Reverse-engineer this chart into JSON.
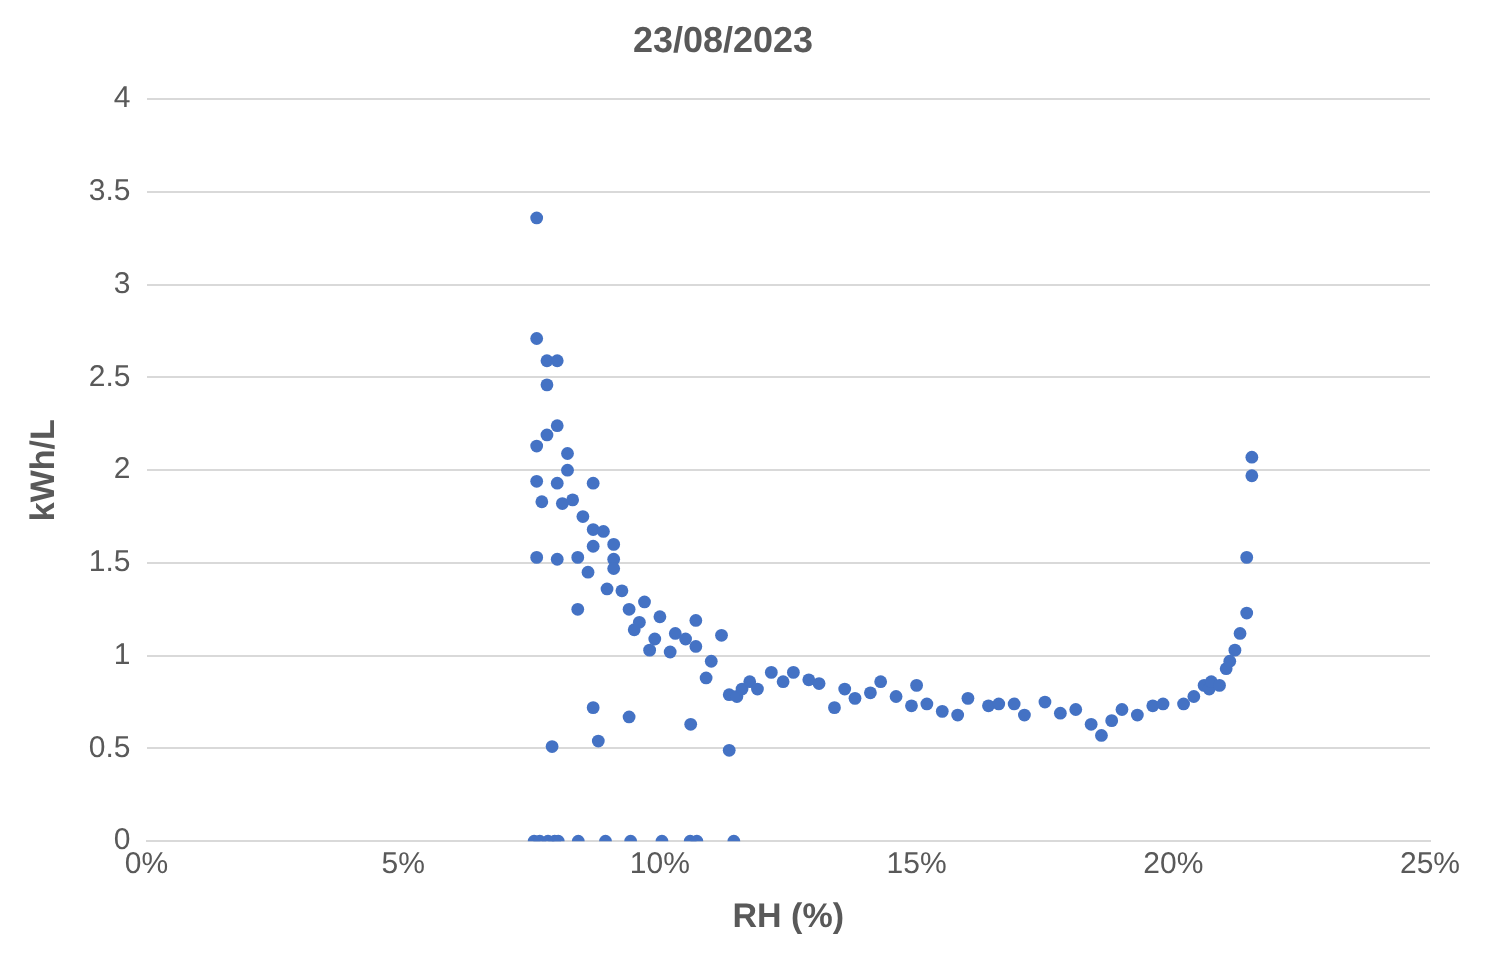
{
  "chart_data": {
    "type": "scatter",
    "title": "23/08/2023",
    "xlabel": "RH (%)",
    "ylabel": "kWh/L",
    "xlim": [
      0,
      25
    ],
    "xticks": [
      {
        "value": 0,
        "label": "0%"
      },
      {
        "value": 5,
        "label": "5%"
      },
      {
        "value": 10,
        "label": "10%"
      },
      {
        "value": 15,
        "label": "15%"
      },
      {
        "value": 20,
        "label": "20%"
      },
      {
        "value": 25,
        "label": "25%"
      }
    ],
    "ylim": [
      0,
      4
    ],
    "yticks": [
      0,
      0.5,
      1,
      1.5,
      2,
      2.5,
      3,
      3.5,
      4
    ],
    "grid": "y",
    "legend": false,
    "marker": "circle",
    "series": [
      {
        "color": "#4472c4",
        "x": [
          7.6,
          7.6,
          7.8,
          8.0,
          7.8,
          8.0,
          7.6,
          7.8,
          8.2,
          8.2,
          7.6,
          8.0,
          8.7,
          7.7,
          8.1,
          8.3,
          8.5,
          8.7,
          8.9,
          7.6,
          8.0,
          8.4,
          8.7,
          8.6,
          9.1,
          9.1,
          8.97,
          8.4,
          9.1,
          9.26,
          9.4,
          9.6,
          9.7,
          10.0,
          9.9,
          10.3,
          10.2,
          10.7,
          10.7,
          11.0,
          11.2,
          9.5,
          9.8,
          10.5,
          10.9,
          8.7,
          9.4,
          7.9,
          8.8,
          10.6,
          11.35,
          7.55,
          7.66,
          7.82,
          7.95,
          8.02,
          8.41,
          8.94,
          9.43,
          10.04,
          10.59,
          10.72,
          11.44,
          11.35,
          11.5,
          11.6,
          11.75,
          11.9,
          12.17,
          12.4,
          12.6,
          12.9,
          13.1,
          13.4,
          13.6,
          13.8,
          14.1,
          14.3,
          14.6,
          15.0,
          14.9,
          15.2,
          15.5,
          15.8,
          16.0,
          16.4,
          16.6,
          16.9,
          17.1,
          17.5,
          17.8,
          18.1,
          18.4,
          18.6,
          18.8,
          19.0,
          19.3,
          19.6,
          19.8,
          20.2,
          20.4,
          20.6,
          20.7,
          20.74,
          20.9,
          21.03,
          21.1,
          21.2,
          21.3,
          21.43,
          21.43,
          21.53,
          21.53
        ],
        "values": [
          3.36,
          2.71,
          2.59,
          2.59,
          2.46,
          2.24,
          2.13,
          2.19,
          2.09,
          2.0,
          1.94,
          1.93,
          1.93,
          1.83,
          1.82,
          1.84,
          1.75,
          1.68,
          1.67,
          1.53,
          1.52,
          1.53,
          1.59,
          1.45,
          1.52,
          1.6,
          1.36,
          1.25,
          1.47,
          1.35,
          1.25,
          1.18,
          1.29,
          1.21,
          1.09,
          1.12,
          1.02,
          1.19,
          1.05,
          0.97,
          1.11,
          1.14,
          1.03,
          1.09,
          0.88,
          0.72,
          0.67,
          0.51,
          0.54,
          0.63,
          0.49,
          0,
          0,
          0,
          0,
          0,
          0,
          0,
          0,
          0,
          0,
          0,
          0,
          0.79,
          0.78,
          0.82,
          0.86,
          0.82,
          0.91,
          0.86,
          0.91,
          0.87,
          0.85,
          0.72,
          0.82,
          0.77,
          0.8,
          0.86,
          0.78,
          0.84,
          0.73,
          0.74,
          0.7,
          0.68,
          0.77,
          0.73,
          0.74,
          0.74,
          0.68,
          0.75,
          0.69,
          0.71,
          0.63,
          0.57,
          0.65,
          0.71,
          0.68,
          0.73,
          0.74,
          0.74,
          0.78,
          0.84,
          0.82,
          0.86,
          0.84,
          0.93,
          0.97,
          1.03,
          1.12,
          1.23,
          1.53,
          1.97,
          2.07
        ]
      }
    ]
  }
}
